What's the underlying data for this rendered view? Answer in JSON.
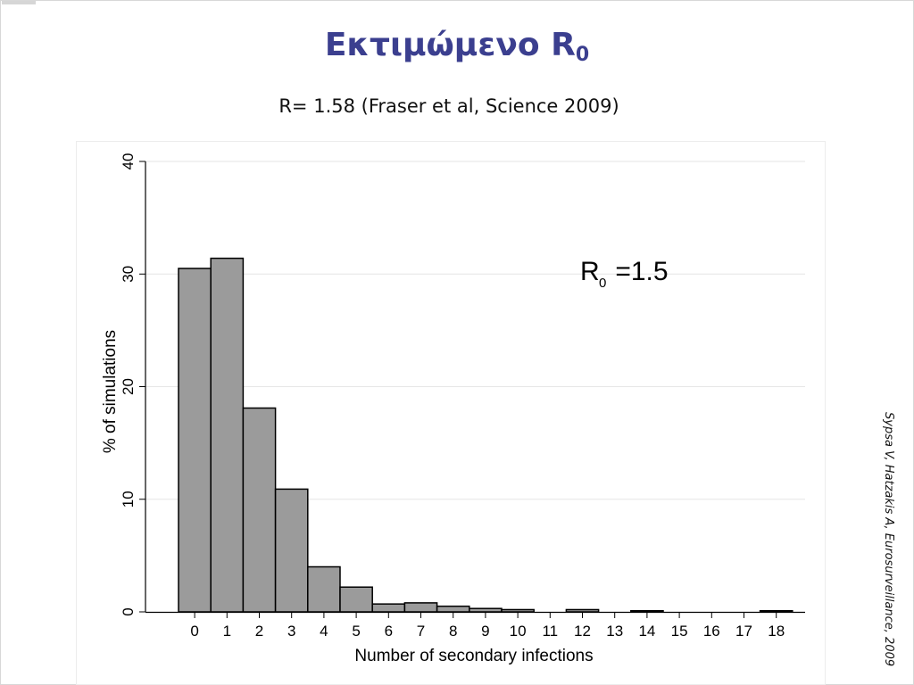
{
  "slide": {
    "title_main": "Εκτιμώμενο R",
    "title_sub": "0",
    "subtitle": "R= 1.58  (Fraser et al, Science 2009)",
    "citation": "Sypsa V, Hatzakis A, Eurosurveillance, 2009"
  },
  "colors": {
    "title": "#3b3f8f",
    "bar_fill": "#9b9b9b",
    "bar_stroke": "#000000",
    "grid": "#e6e6e6"
  },
  "chart_data": {
    "type": "bar",
    "categories": [
      "0",
      "1",
      "2",
      "3",
      "4",
      "5",
      "6",
      "7",
      "8",
      "9",
      "10",
      "11",
      "12",
      "13",
      "14",
      "15",
      "16",
      "17",
      "18"
    ],
    "values": [
      30.5,
      31.4,
      18.1,
      10.9,
      4.0,
      2.2,
      0.7,
      0.8,
      0.5,
      0.3,
      0.2,
      0,
      0.2,
      0,
      0.1,
      0,
      0,
      0,
      0.1
    ],
    "title": "",
    "xlabel": "Number of secondary infections",
    "ylabel": "% of simulations",
    "ylim": [
      0,
      40
    ],
    "yticks": [
      0,
      10,
      20,
      30,
      40
    ],
    "grid": true,
    "annotation": {
      "text_main": "R",
      "text_sub": "0",
      "text_rest": " =1.5"
    }
  }
}
